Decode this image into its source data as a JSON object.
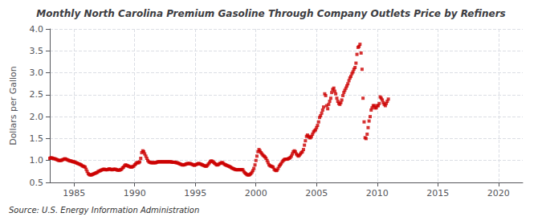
{
  "chart_data": {
    "type": "scatter",
    "title": "Monthly North Carolina Premium Gasoline Through Company Outlets Price by Refiners",
    "ylabel": "Dollars per Gallon",
    "source": "Source: U.S. Energy Information Administration",
    "color": "#cc0000",
    "marker": "square",
    "grid": true,
    "xlim": [
      1983,
      2022
    ],
    "ylim": [
      0.5,
      4.0
    ],
    "xticks": [
      1985,
      1990,
      1995,
      2000,
      2005,
      2010,
      2015,
      2020
    ],
    "yticks": [
      {
        "value": 0.5,
        "label": "0.5"
      },
      {
        "value": 1.0,
        "label": "1.0"
      },
      {
        "value": 1.5,
        "label": "1.5"
      },
      {
        "value": 2.0,
        "label": "2.0"
      },
      {
        "value": 2.5,
        "label": "2.5"
      },
      {
        "value": 3.0,
        "label": "3.0"
      },
      {
        "value": 3.5,
        "label": "3.5"
      },
      {
        "value": 4.0,
        "label": "4.0"
      }
    ],
    "x": [
      1983.0,
      1983.08,
      1983.17,
      1983.25,
      1983.33,
      1983.42,
      1983.5,
      1983.58,
      1983.67,
      1983.75,
      1983.83,
      1983.92,
      1984.0,
      1984.08,
      1984.17,
      1984.25,
      1984.33,
      1984.42,
      1984.5,
      1984.58,
      1984.67,
      1984.75,
      1984.83,
      1984.92,
      1985.0,
      1985.08,
      1985.17,
      1985.25,
      1985.33,
      1985.42,
      1985.5,
      1985.58,
      1985.67,
      1985.75,
      1985.83,
      1985.92,
      1986.0,
      1986.08,
      1986.17,
      1986.25,
      1986.33,
      1986.42,
      1986.5,
      1986.58,
      1986.67,
      1986.75,
      1986.83,
      1986.92,
      1987.0,
      1987.08,
      1987.17,
      1987.25,
      1987.33,
      1987.42,
      1987.5,
      1987.58,
      1987.67,
      1987.75,
      1987.83,
      1987.92,
      1988.0,
      1988.08,
      1988.17,
      1988.25,
      1988.33,
      1988.42,
      1988.5,
      1988.58,
      1988.67,
      1988.75,
      1988.83,
      1988.92,
      1989.0,
      1989.08,
      1989.17,
      1989.25,
      1989.33,
      1989.42,
      1989.5,
      1989.58,
      1989.67,
      1989.75,
      1989.83,
      1989.92,
      1990.0,
      1990.08,
      1990.17,
      1990.25,
      1990.33,
      1990.42,
      1990.5,
      1990.58,
      1990.67,
      1990.75,
      1990.83,
      1990.92,
      1991.0,
      1991.08,
      1991.17,
      1991.25,
      1991.33,
      1991.42,
      1991.5,
      1991.58,
      1991.67,
      1991.75,
      1991.83,
      1991.92,
      1992.0,
      1992.08,
      1992.17,
      1992.25,
      1992.33,
      1992.42,
      1992.5,
      1992.58,
      1992.67,
      1992.75,
      1992.83,
      1992.92,
      1993.0,
      1993.08,
      1993.17,
      1993.25,
      1993.33,
      1993.42,
      1993.5,
      1993.58,
      1993.67,
      1993.75,
      1993.83,
      1993.92,
      1994.0,
      1994.08,
      1994.17,
      1994.25,
      1994.33,
      1994.42,
      1994.5,
      1994.58,
      1994.67,
      1994.75,
      1994.83,
      1994.92,
      1995.0,
      1995.08,
      1995.17,
      1995.25,
      1995.33,
      1995.42,
      1995.5,
      1995.58,
      1995.67,
      1995.75,
      1995.83,
      1995.92,
      1996.0,
      1996.08,
      1996.17,
      1996.25,
      1996.33,
      1996.42,
      1996.5,
      1996.58,
      1996.67,
      1996.75,
      1996.83,
      1996.92,
      1997.0,
      1997.08,
      1997.17,
      1997.25,
      1997.33,
      1997.42,
      1997.5,
      1997.58,
      1997.67,
      1997.75,
      1997.83,
      1997.92,
      1998.0,
      1998.08,
      1998.17,
      1998.25,
      1998.33,
      1998.42,
      1998.5,
      1998.58,
      1998.67,
      1998.75,
      1998.83,
      1998.92,
      1999.0,
      1999.08,
      1999.17,
      1999.25,
      1999.33,
      1999.42,
      1999.5,
      1999.58,
      1999.67,
      1999.75,
      1999.83,
      1999.92,
      2000.0,
      2000.08,
      2000.17,
      2000.25,
      2000.33,
      2000.42,
      2000.5,
      2000.58,
      2000.67,
      2000.75,
      2000.83,
      2000.92,
      2001.0,
      2001.08,
      2001.17,
      2001.25,
      2001.33,
      2001.42,
      2001.5,
      2001.58,
      2001.67,
      2001.75,
      2001.83,
      2001.92,
      2002.0,
      2002.08,
      2002.17,
      2002.25,
      2002.33,
      2002.42,
      2002.5,
      2002.58,
      2002.67,
      2002.75,
      2002.83,
      2002.92,
      2003.0,
      2003.08,
      2003.17,
      2003.25,
      2003.33,
      2003.42,
      2003.5,
      2003.58,
      2003.67,
      2003.75,
      2003.83,
      2003.92,
      2004.0,
      2004.08,
      2004.17,
      2004.25,
      2004.33,
      2004.42,
      2004.5,
      2004.58,
      2004.67,
      2004.75,
      2004.83,
      2004.92,
      2005.0,
      2005.08,
      2005.17,
      2005.25,
      2005.33,
      2005.42,
      2005.5,
      2005.58,
      2005.67,
      2005.75,
      2005.83,
      2005.92,
      2006.0,
      2006.08,
      2006.17,
      2006.25,
      2006.33,
      2006.42,
      2006.5,
      2006.58,
      2006.67,
      2006.75,
      2006.83,
      2006.92,
      2007.0,
      2007.08,
      2007.17,
      2007.25,
      2007.33,
      2007.42,
      2007.5,
      2007.58,
      2007.67,
      2007.75,
      2007.83,
      2007.92,
      2008.0,
      2008.08,
      2008.17,
      2008.25,
      2008.33,
      2008.42,
      2008.5,
      2008.58,
      2008.67,
      2008.75,
      2008.83,
      2008.92,
      2009.0,
      2009.08,
      2009.17,
      2009.25,
      2009.33,
      2009.42,
      2009.5,
      2009.58,
      2009.67,
      2009.75,
      2009.83,
      2009.92,
      2010.0,
      2010.08,
      2010.17,
      2010.25,
      2010.33,
      2010.42,
      2010.5,
      2010.58,
      2010.67,
      2010.75,
      2010.83,
      2010.92
    ],
    "values": [
      1.05,
      1.06,
      1.06,
      1.05,
      1.04,
      1.04,
      1.03,
      1.02,
      1.01,
      1.0,
      1.0,
      1.0,
      1.01,
      1.02,
      1.03,
      1.04,
      1.03,
      1.02,
      1.01,
      1.0,
      0.99,
      0.99,
      0.98,
      0.97,
      0.97,
      0.96,
      0.95,
      0.94,
      0.93,
      0.92,
      0.91,
      0.9,
      0.88,
      0.87,
      0.86,
      0.85,
      0.8,
      0.75,
      0.7,
      0.68,
      0.67,
      0.67,
      0.68,
      0.69,
      0.7,
      0.71,
      0.72,
      0.73,
      0.75,
      0.76,
      0.77,
      0.78,
      0.79,
      0.8,
      0.8,
      0.79,
      0.79,
      0.79,
      0.8,
      0.81,
      0.8,
      0.79,
      0.79,
      0.8,
      0.8,
      0.8,
      0.79,
      0.78,
      0.78,
      0.78,
      0.79,
      0.8,
      0.83,
      0.85,
      0.88,
      0.9,
      0.89,
      0.88,
      0.87,
      0.86,
      0.85,
      0.85,
      0.86,
      0.87,
      0.9,
      0.92,
      0.95,
      0.95,
      0.95,
      0.97,
      1.05,
      1.18,
      1.22,
      1.2,
      1.15,
      1.1,
      1.05,
      1.0,
      0.97,
      0.96,
      0.95,
      0.95,
      0.95,
      0.95,
      0.95,
      0.95,
      0.96,
      0.97,
      0.97,
      0.97,
      0.97,
      0.97,
      0.97,
      0.97,
      0.97,
      0.97,
      0.97,
      0.97,
      0.97,
      0.97,
      0.97,
      0.96,
      0.96,
      0.96,
      0.96,
      0.95,
      0.95,
      0.94,
      0.93,
      0.92,
      0.91,
      0.9,
      0.9,
      0.9,
      0.91,
      0.92,
      0.93,
      0.93,
      0.93,
      0.93,
      0.92,
      0.91,
      0.9,
      0.89,
      0.9,
      0.91,
      0.92,
      0.93,
      0.93,
      0.92,
      0.91,
      0.9,
      0.89,
      0.88,
      0.87,
      0.87,
      0.89,
      0.92,
      0.95,
      0.98,
      0.99,
      0.98,
      0.96,
      0.94,
      0.92,
      0.9,
      0.9,
      0.91,
      0.93,
      0.94,
      0.95,
      0.95,
      0.93,
      0.91,
      0.9,
      0.89,
      0.88,
      0.87,
      0.86,
      0.85,
      0.83,
      0.82,
      0.81,
      0.8,
      0.79,
      0.79,
      0.79,
      0.79,
      0.79,
      0.79,
      0.79,
      0.79,
      0.75,
      0.72,
      0.7,
      0.68,
      0.67,
      0.67,
      0.68,
      0.7,
      0.73,
      0.77,
      0.82,
      0.9,
      1.0,
      1.1,
      1.2,
      1.25,
      1.22,
      1.18,
      1.15,
      1.12,
      1.1,
      1.08,
      1.05,
      1.0,
      0.95,
      0.9,
      0.88,
      0.87,
      0.86,
      0.85,
      0.8,
      0.78,
      0.77,
      0.78,
      0.82,
      0.87,
      0.9,
      0.93,
      0.97,
      1.0,
      1.02,
      1.03,
      1.03,
      1.03,
      1.04,
      1.05,
      1.07,
      1.1,
      1.15,
      1.2,
      1.22,
      1.2,
      1.15,
      1.12,
      1.1,
      1.12,
      1.15,
      1.18,
      1.2,
      1.25,
      1.35,
      1.45,
      1.55,
      1.58,
      1.55,
      1.52,
      1.52,
      1.55,
      1.6,
      1.65,
      1.68,
      1.7,
      1.75,
      1.8,
      1.88,
      1.98,
      2.02,
      2.08,
      2.15,
      2.22,
      2.52,
      2.48,
      2.25,
      2.18,
      2.28,
      2.35,
      2.42,
      2.55,
      2.62,
      2.65,
      2.58,
      2.52,
      2.42,
      2.35,
      2.3,
      2.28,
      2.32,
      2.38,
      2.48,
      2.55,
      2.6,
      2.65,
      2.7,
      2.75,
      2.82,
      2.88,
      2.92,
      2.98,
      3.02,
      3.08,
      3.12,
      3.22,
      3.42,
      3.58,
      3.6,
      3.65,
      3.45,
      3.08,
      2.42,
      1.88,
      1.52,
      1.5,
      1.6,
      1.75,
      1.9,
      2.0,
      2.15,
      2.2,
      2.25,
      2.25,
      2.2,
      2.2,
      2.25,
      2.25,
      2.3,
      2.45,
      2.42,
      2.38,
      2.32,
      2.28,
      2.25,
      2.3,
      2.35,
      2.4
    ]
  }
}
